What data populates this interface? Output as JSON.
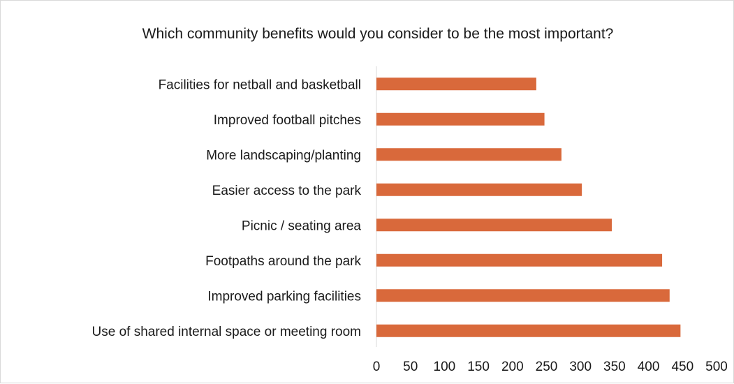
{
  "chart_data": {
    "type": "bar",
    "orientation": "horizontal",
    "title": "Which community benefits would you consider to be the most important?",
    "xlabel": "",
    "ylabel": "",
    "categories": [
      "Facilities for netball and basketball",
      "Improved football pitches",
      "More landscaping/planting",
      "Easier access to the park",
      "Picnic / seating area",
      "Footpaths around the park",
      "Improved parking facilities",
      "Use of shared internal space or meeting room"
    ],
    "values": [
      235,
      247,
      272,
      302,
      346,
      420,
      431,
      447
    ],
    "xlim": [
      0,
      500
    ],
    "xticks": [
      "0",
      "50",
      "100",
      "150",
      "200",
      "250",
      "300",
      "350",
      "400",
      "450",
      "500"
    ],
    "bar_color": "#d9693b",
    "grid": false,
    "legend": "none"
  }
}
